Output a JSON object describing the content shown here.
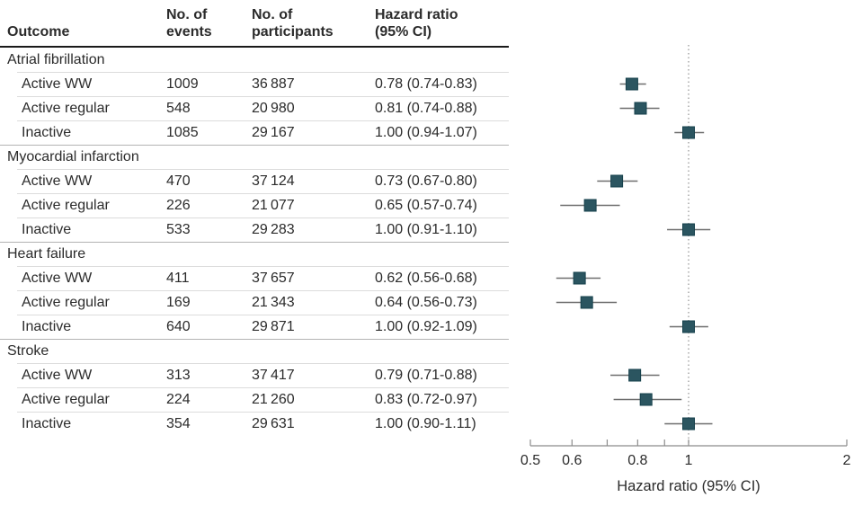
{
  "figure": {
    "background": "#ffffff"
  },
  "table": {
    "headers": {
      "outcome": "Outcome",
      "events_line1": "No. of",
      "events_line2": "events",
      "participants_line1": "No. of",
      "participants_line2": "participants",
      "hr_line1": "Hazard ratio",
      "hr_line2": "(95% CI)"
    }
  },
  "chart_data": {
    "type": "forest",
    "xlabel": "Hazard ratio (95% CI)",
    "xscale": "log",
    "xlim": [
      0.5,
      2
    ],
    "xticks": [
      0.5,
      0.6,
      0.7,
      0.8,
      0.9,
      1,
      2
    ],
    "xtick_labels": [
      {
        "v": 0.5,
        "t": "0.5"
      },
      {
        "v": 0.6,
        "t": "0.6"
      },
      {
        "v": 0.8,
        "t": "0.8"
      },
      {
        "v": 1,
        "t": "1"
      },
      {
        "v": 2,
        "t": "2"
      }
    ],
    "reference_line": 1,
    "grid": false,
    "marker_color": "#2b5560",
    "marker_border": "#16404b",
    "ci_color": "#6e6e6e",
    "axis_color": "#8c8c8c",
    "ref_line_color": "#9a9a9a",
    "groups": [
      {
        "label": "Atrial fibrillation",
        "rows": [
          {
            "label": "Active WW",
            "events": "1009",
            "participants": "36 887",
            "hr_text": "0.78 (0.74-0.83)",
            "hr": 0.78,
            "lo": 0.74,
            "hi": 0.83
          },
          {
            "label": "Active regular",
            "events": "548",
            "participants": "20 980",
            "hr_text": "0.81 (0.74-0.88)",
            "hr": 0.81,
            "lo": 0.74,
            "hi": 0.88
          },
          {
            "label": "Inactive",
            "events": "1085",
            "participants": "29 167",
            "hr_text": "1.00 (0.94-1.07)",
            "hr": 1.0,
            "lo": 0.94,
            "hi": 1.07
          }
        ]
      },
      {
        "label": "Myocardial infarction",
        "rows": [
          {
            "label": "Active WW",
            "events": "470",
            "participants": "37 124",
            "hr_text": "0.73 (0.67-0.80)",
            "hr": 0.73,
            "lo": 0.67,
            "hi": 0.8
          },
          {
            "label": "Active regular",
            "events": "226",
            "participants": "21 077",
            "hr_text": "0.65 (0.57-0.74)",
            "hr": 0.65,
            "lo": 0.57,
            "hi": 0.74
          },
          {
            "label": "Inactive",
            "events": "533",
            "participants": "29 283",
            "hr_text": "1.00 (0.91-1.10)",
            "hr": 1.0,
            "lo": 0.91,
            "hi": 1.1
          }
        ]
      },
      {
        "label": "Heart failure",
        "rows": [
          {
            "label": "Active WW",
            "events": "411",
            "participants": "37 657",
            "hr_text": "0.62 (0.56-0.68)",
            "hr": 0.62,
            "lo": 0.56,
            "hi": 0.68
          },
          {
            "label": "Active regular",
            "events": "169",
            "participants": "21 343",
            "hr_text": "0.64 (0.56-0.73)",
            "hr": 0.64,
            "lo": 0.56,
            "hi": 0.73
          },
          {
            "label": "Inactive",
            "events": "640",
            "participants": "29 871",
            "hr_text": "1.00 (0.92-1.09)",
            "hr": 1.0,
            "lo": 0.92,
            "hi": 1.09
          }
        ]
      },
      {
        "label": "Stroke",
        "rows": [
          {
            "label": "Active WW",
            "events": "313",
            "participants": "37 417",
            "hr_text": "0.79 (0.71-0.88)",
            "hr": 0.79,
            "lo": 0.71,
            "hi": 0.88
          },
          {
            "label": "Active regular",
            "events": "224",
            "participants": "21 260",
            "hr_text": "0.83 (0.72-0.97)",
            "hr": 0.83,
            "lo": 0.72,
            "hi": 0.97
          },
          {
            "label": "Inactive",
            "events": "354",
            "participants": "29 631",
            "hr_text": "1.00 (0.90-1.11)",
            "hr": 1.0,
            "lo": 0.9,
            "hi": 1.11
          }
        ]
      }
    ]
  }
}
